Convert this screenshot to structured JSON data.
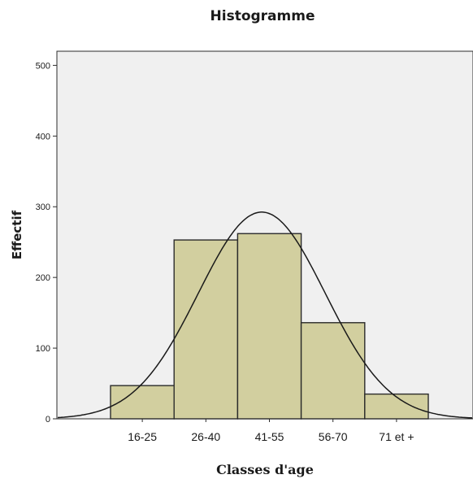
{
  "chart_data": {
    "type": "bar",
    "title": "Histogramme",
    "xlabel": "Classes d'age",
    "ylabel": "Effectif",
    "categories": [
      "16-25",
      "26-40",
      "41-55",
      "56-70",
      "71 et +"
    ],
    "values": [
      47,
      253,
      262,
      136,
      35
    ],
    "ylim": [
      0,
      520
    ],
    "yticks": [
      0,
      100,
      200,
      300,
      400,
      500
    ],
    "grid": false,
    "legend": "none",
    "normal_curve": {
      "mean": 2.88,
      "sd": 1.0,
      "n": 733
    },
    "colors": {
      "plot_background": "#f0f0f0",
      "bar_fill": "#d2cf9f",
      "bar_stroke": "#2b2b2b",
      "curve": "#1a1a1a"
    }
  }
}
